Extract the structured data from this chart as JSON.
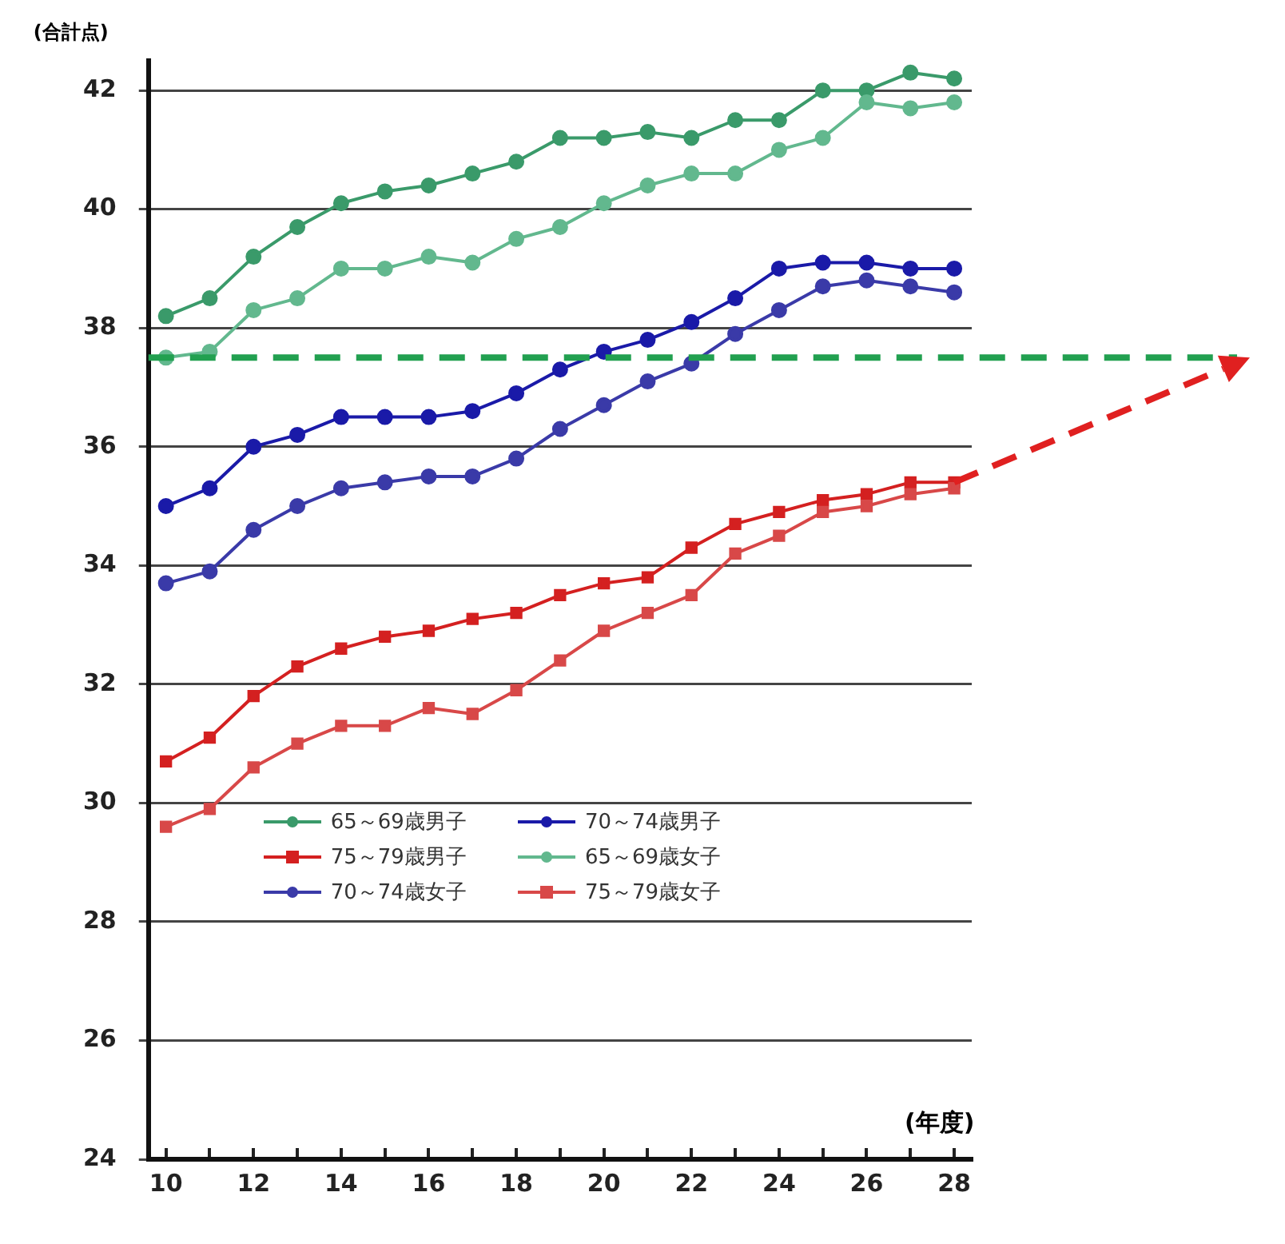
{
  "chart_data": {
    "type": "line",
    "xlabel": "(年度)",
    "ylabel": "(合計点)",
    "x": [
      10,
      11,
      12,
      13,
      14,
      15,
      16,
      17,
      18,
      19,
      20,
      21,
      22,
      23,
      24,
      25,
      26,
      27,
      28
    ],
    "series": [
      {
        "name": "65～69歳男子",
        "color": "#3a9a6a",
        "marker": "circle",
        "values": [
          38.2,
          38.5,
          39.2,
          39.7,
          40.1,
          40.3,
          40.4,
          40.6,
          40.8,
          41.2,
          41.2,
          41.3,
          41.2,
          41.5,
          41.5,
          42.0,
          42.0,
          42.3,
          42.2
        ]
      },
      {
        "name": "70～74歳男子",
        "color": "#1a1aa8",
        "marker": "circle",
        "values": [
          35.0,
          35.3,
          36.0,
          36.2,
          36.5,
          36.5,
          36.5,
          36.6,
          36.9,
          37.3,
          37.6,
          37.8,
          38.1,
          38.5,
          39.0,
          39.1,
          39.1,
          39.0,
          39.0
        ]
      },
      {
        "name": "75～79歳男子",
        "color": "#d42020",
        "marker": "square",
        "values": [
          30.7,
          31.1,
          31.8,
          32.3,
          32.6,
          32.8,
          32.9,
          33.1,
          33.2,
          33.5,
          33.7,
          33.8,
          34.3,
          34.7,
          34.9,
          35.1,
          35.2,
          35.4,
          35.4
        ]
      },
      {
        "name": "65～69歳女子",
        "color": "#62b88e",
        "marker": "circle",
        "values": [
          37.5,
          37.6,
          38.3,
          38.5,
          39.0,
          39.0,
          39.2,
          39.1,
          39.5,
          39.7,
          40.1,
          40.4,
          40.6,
          40.6,
          41.0,
          41.2,
          41.8,
          41.7,
          41.8
        ]
      },
      {
        "name": "70～74歳女子",
        "color": "#3a3aa8",
        "marker": "circle",
        "values": [
          33.7,
          33.9,
          34.6,
          35.0,
          35.3,
          35.4,
          35.5,
          35.5,
          35.8,
          36.3,
          36.7,
          37.1,
          37.4,
          37.9,
          38.3,
          38.7,
          38.8,
          38.7,
          38.6
        ]
      },
      {
        "name": "75～79歳女子",
        "color": "#d84848",
        "marker": "square",
        "values": [
          29.6,
          29.9,
          30.6,
          31.0,
          31.3,
          31.3,
          31.6,
          31.5,
          31.9,
          32.4,
          32.9,
          33.2,
          33.5,
          34.2,
          34.5,
          34.9,
          35.0,
          35.2,
          35.3
        ]
      }
    ],
    "xlim": [
      9.6,
      28.4
    ],
    "xticks": [
      10,
      {
        "value": 11,
        "label": null
      },
      12,
      {
        "value": 13,
        "label": null
      },
      14,
      {
        "value": 15,
        "label": null
      },
      16,
      {
        "value": 17,
        "label": null
      },
      18,
      {
        "value": 19,
        "label": null
      },
      20,
      {
        "value": 21,
        "label": null
      },
      22,
      {
        "value": 23,
        "label": null
      },
      24,
      {
        "value": 25,
        "label": null
      },
      26,
      {
        "value": 27,
        "label": null
      },
      28
    ],
    "ylim": [
      24,
      42.5
    ],
    "yticks": [
      24,
      26,
      28,
      30,
      32,
      34,
      36,
      38,
      40,
      42
    ],
    "grid": "y",
    "legend": "bottom left",
    "ref_lines": [
      {
        "axis": "y",
        "value": 37.5,
        "color": "#22a050",
        "line_style": "dashed"
      }
    ]
  }
}
